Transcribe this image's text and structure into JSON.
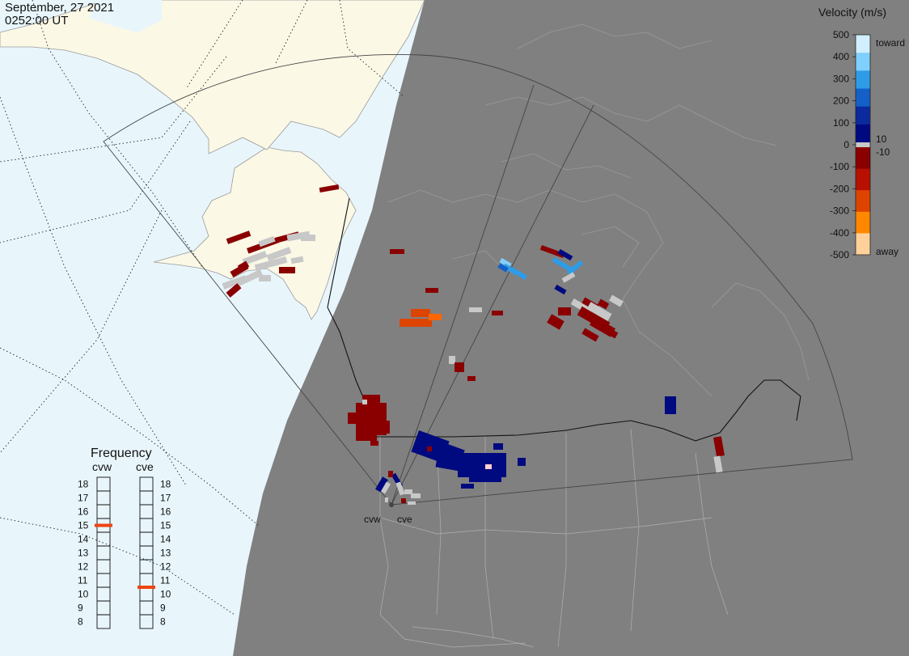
{
  "header": {
    "date": "September, 27 2021",
    "time": "0252:00 UT"
  },
  "colorbar": {
    "title": "Velocity (m/s)",
    "ticks": [
      "500",
      "400",
      "300",
      "200",
      "100",
      "0",
      "-100",
      "-200",
      "-300",
      "-400",
      "-500"
    ],
    "toward_label": "toward",
    "away_label": "away",
    "threshold_pos": "10",
    "threshold_neg": "-10",
    "colors": [
      "#d2efff",
      "#80d0ff",
      "#2e9ce6",
      "#1460c8",
      "#0a2a9e",
      "#000a80",
      "#8a0000",
      "#b81000",
      "#dd4400",
      "#ff8800",
      "#ffd09a"
    ]
  },
  "frequency": {
    "title": "Frequency",
    "radars": [
      {
        "name": "cvw",
        "value": 15
      },
      {
        "name": "cve",
        "value": 10.5
      }
    ],
    "ticks": [
      "18",
      "17",
      "16",
      "15",
      "14",
      "13",
      "12",
      "11",
      "10",
      "9",
      "8"
    ],
    "marker_color": "#ee4411"
  },
  "radars": [
    {
      "name": "cvw"
    },
    {
      "name": "cve"
    }
  ],
  "colors": {
    "night": "#808080",
    "ocean_day": "#e8f6fc",
    "land_day": "#fbf8e6",
    "coast_night": "#9a9a9a",
    "echo_low": "#c8c8c8"
  }
}
